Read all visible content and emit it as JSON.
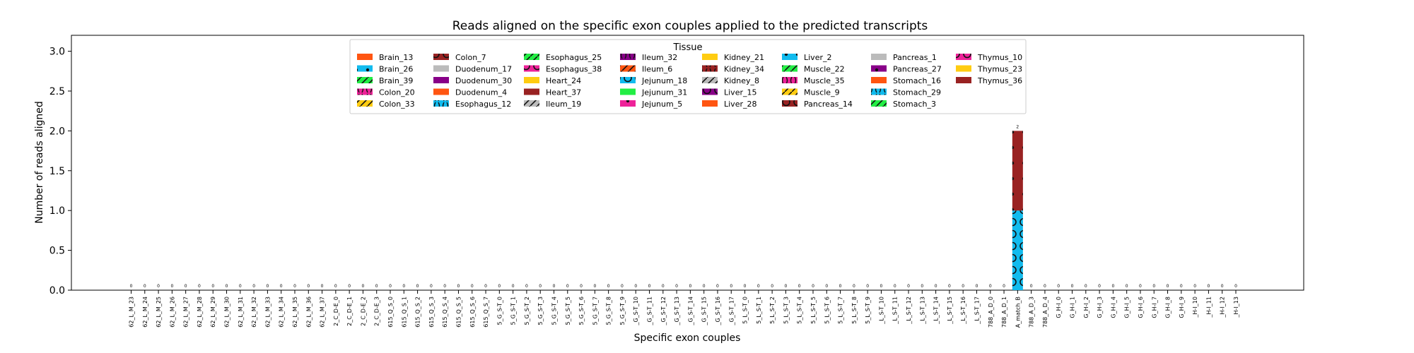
{
  "chart_data": {
    "type": "bar",
    "title": "Reads aligned on the specific exon couples applied to the predicted transcripts",
    "xlabel": "Specific exon couples",
    "ylabel": "Number of reads aligned",
    "ylim": [
      0,
      3.2
    ],
    "yticks": [
      "0.0",
      "0.5",
      "1.0",
      "1.5",
      "2.0",
      "2.5",
      "3.0"
    ],
    "ytick_values": [
      0,
      0.5,
      1.0,
      1.5,
      2.0,
      2.5,
      3.0
    ],
    "grid": false,
    "legend": {
      "title": "Tissue",
      "placement": "top-center",
      "entries": [
        {
          "name": "Brain_13",
          "color": "#ff5511",
          "hatch": "none"
        },
        {
          "name": "Brain_26",
          "color": "#11bbee",
          "hatch": "dots"
        },
        {
          "name": "Brain_39",
          "color": "#22ee44",
          "hatch": "slash"
        },
        {
          "name": "Colon_20",
          "color": "#ee2299",
          "hatch": "bracket"
        },
        {
          "name": "Colon_33",
          "color": "#ffcc11",
          "hatch": "slash"
        },
        {
          "name": "Colon_7",
          "color": "#992222",
          "hatch": "circles"
        },
        {
          "name": "Duodenum_17",
          "color": "#bbbbbb",
          "hatch": "none"
        },
        {
          "name": "Duodenum_30",
          "color": "#880088",
          "hatch": "dots"
        },
        {
          "name": "Duodenum_4",
          "color": "#ff5511",
          "hatch": "none"
        },
        {
          "name": "Esophagus_12",
          "color": "#11bbee",
          "hatch": "bracket"
        },
        {
          "name": "Esophagus_25",
          "color": "#22ee44",
          "hatch": "slash"
        },
        {
          "name": "Esophagus_38",
          "color": "#ee2299",
          "hatch": "circles"
        },
        {
          "name": "Heart_24",
          "color": "#ffcc11",
          "hatch": "none"
        },
        {
          "name": "Heart_37",
          "color": "#992222",
          "hatch": "dots"
        },
        {
          "name": "Ileum_19",
          "color": "#bbbbbb",
          "hatch": "slash"
        },
        {
          "name": "Ileum_32",
          "color": "#880088",
          "hatch": "bracket"
        },
        {
          "name": "Ileum_6",
          "color": "#ff5511",
          "hatch": "slash"
        },
        {
          "name": "Jejunum_18",
          "color": "#11bbee",
          "hatch": "circles"
        },
        {
          "name": "Jejunum_31",
          "color": "#22ee44",
          "hatch": "none"
        },
        {
          "name": "Jejunum_5",
          "color": "#ee2299",
          "hatch": "dots"
        },
        {
          "name": "Kidney_21",
          "color": "#ffcc11",
          "hatch": "none"
        },
        {
          "name": "Kidney_34",
          "color": "#992222",
          "hatch": "bracket"
        },
        {
          "name": "Kidney_8",
          "color": "#bbbbbb",
          "hatch": "slash"
        },
        {
          "name": "Liver_15",
          "color": "#880088",
          "hatch": "circles"
        },
        {
          "name": "Liver_28",
          "color": "#ff5511",
          "hatch": "none"
        },
        {
          "name": "Liver_2",
          "color": "#11bbee",
          "hatch": "dots"
        },
        {
          "name": "Muscle_22",
          "color": "#22ee44",
          "hatch": "slash"
        },
        {
          "name": "Muscle_35",
          "color": "#ee2299",
          "hatch": "bracket"
        },
        {
          "name": "Muscle_9",
          "color": "#ffcc11",
          "hatch": "slash"
        },
        {
          "name": "Pancreas_14",
          "color": "#992222",
          "hatch": "circles"
        },
        {
          "name": "Pancreas_1",
          "color": "#bbbbbb",
          "hatch": "none"
        },
        {
          "name": "Pancreas_27",
          "color": "#880088",
          "hatch": "dots"
        },
        {
          "name": "Stomach_16",
          "color": "#ff5511",
          "hatch": "none"
        },
        {
          "name": "Stomach_29",
          "color": "#11bbee",
          "hatch": "bracket"
        },
        {
          "name": "Stomach_3",
          "color": "#22ee44",
          "hatch": "slash"
        },
        {
          "name": "Thymus_10",
          "color": "#ee2299",
          "hatch": "circles"
        },
        {
          "name": "Thymus_23",
          "color": "#ffcc11",
          "hatch": "none"
        },
        {
          "name": "Thymus_36",
          "color": "#992222",
          "hatch": "dots"
        }
      ]
    },
    "categories": [
      "62_L_M_23",
      "62_L_M_24",
      "62_L_M_25",
      "62_L_M_26",
      "62_L_M_27",
      "62_L_M_28",
      "62_L_M_29",
      "62_L_M_30",
      "62_L_M_31",
      "62_L_M_32",
      "62_L_M_33",
      "62_L_M_34",
      "62_L_M_35",
      "62_L_M_36",
      "62_L_M_37",
      "2_C_D-E_0",
      "2_C_D-E_1",
      "2_C_D-E_2",
      "2_C_D-E_3",
      "615_Q_S_0",
      "615_Q_S_1",
      "615_Q_S_2",
      "615_Q_S_3",
      "615_Q_S_4",
      "615_Q_S_5",
      "615_Q_S_6",
      "615_Q_S_7",
      "5_G_S-T_0",
      "5_G_S-T_1",
      "5_G_S-T_2",
      "5_G_S-T_3",
      "5_G_S-T_4",
      "5_G_S-T_5",
      "5_G_S-T_6",
      "5_G_S-T_7",
      "5_G_S-T_8",
      "5_G_S-T_9",
      "_G_S-T_10",
      "_G_S-T_11",
      "_G_S-T_12",
      "_G_S-T_13",
      "_G_S-T_14",
      "_G_S-T_15",
      "_G_S-T_16",
      "_G_S-T_17",
      "5_L_S-T_0",
      "5_L_S-T_1",
      "5_L_S-T_2",
      "5_L_S-T_3",
      "5_L_S-T_4",
      "5_L_S-T_5",
      "5_L_S-T_6",
      "5_L_S-T_7",
      "5_L_S-T_8",
      "5_L_S-T_9",
      "_L_S-T_10",
      "_L_S-T_11",
      "_L_S-T_12",
      "_L_S-T_13",
      "_L_S-T_14",
      "_L_S-T_15",
      "_L_S-T_16",
      "_L_S-T_17",
      "788_A_D_0",
      "788_A_D_1",
      "A_match_B",
      "788_A_D_3",
      "788_A_D_4",
      "G_H-I_0",
      "G_H-I_1",
      "G_H-I_2",
      "G_H-I_3",
      "G_H-I_4",
      "G_H-I_5",
      "G_H-I_6",
      "G_H-I_7",
      "G_H-I_8",
      "G_H-I_9",
      "_H-I_10",
      "_H-I_11",
      "_H-I_12",
      "_H-I_13"
    ],
    "totals": [
      0,
      0,
      0,
      0,
      0,
      0,
      0,
      0,
      0,
      0,
      0,
      0,
      0,
      0,
      0,
      0,
      0,
      0,
      0,
      0,
      0,
      0,
      0,
      0,
      0,
      0,
      0,
      0,
      0,
      0,
      0,
      0,
      0,
      0,
      0,
      0,
      0,
      0,
      0,
      0,
      0,
      0,
      0,
      0,
      0,
      0,
      0,
      0,
      0,
      0,
      0,
      0,
      0,
      0,
      0,
      0,
      0,
      0,
      0,
      0,
      0,
      0,
      0,
      0,
      0,
      2,
      0,
      0,
      0,
      0,
      0,
      0,
      0,
      0,
      0,
      0,
      0,
      0,
      0,
      0,
      0,
      0
    ],
    "total_labels": [
      "0",
      "0",
      "0",
      "0",
      "0",
      "0",
      "0",
      "0",
      "0",
      "0",
      "0",
      "0",
      "0",
      "0",
      "0",
      "0",
      "0",
      "0",
      "0",
      "0",
      "0",
      "0",
      "0",
      "0",
      "0",
      "0",
      "0",
      "0",
      "0",
      "0",
      "0",
      "0",
      "0",
      "0",
      "0",
      "0",
      "0",
      "0",
      "0",
      "0",
      "0",
      "0",
      "0",
      "0",
      "0",
      "0",
      "0",
      "0",
      "0",
      "0",
      "0",
      "0",
      "0",
      "0",
      "0",
      "0",
      "0",
      "0",
      "0",
      "0",
      "0",
      "0",
      "0",
      "0",
      "0",
      "2",
      "0",
      "0",
      "0",
      "0",
      "0",
      "0",
      "0",
      "0",
      "0",
      "0",
      "0",
      "0",
      "0",
      "0",
      "0",
      "0"
    ],
    "stacked_series": [
      {
        "name": "Jejunum_18",
        "category": "A_match_B",
        "value": 1,
        "color": "#11bbee",
        "hatch": "circles"
      },
      {
        "name": "Thymus_36",
        "category": "A_match_B",
        "value": 1,
        "color": "#992222",
        "hatch": "dots"
      }
    ]
  }
}
